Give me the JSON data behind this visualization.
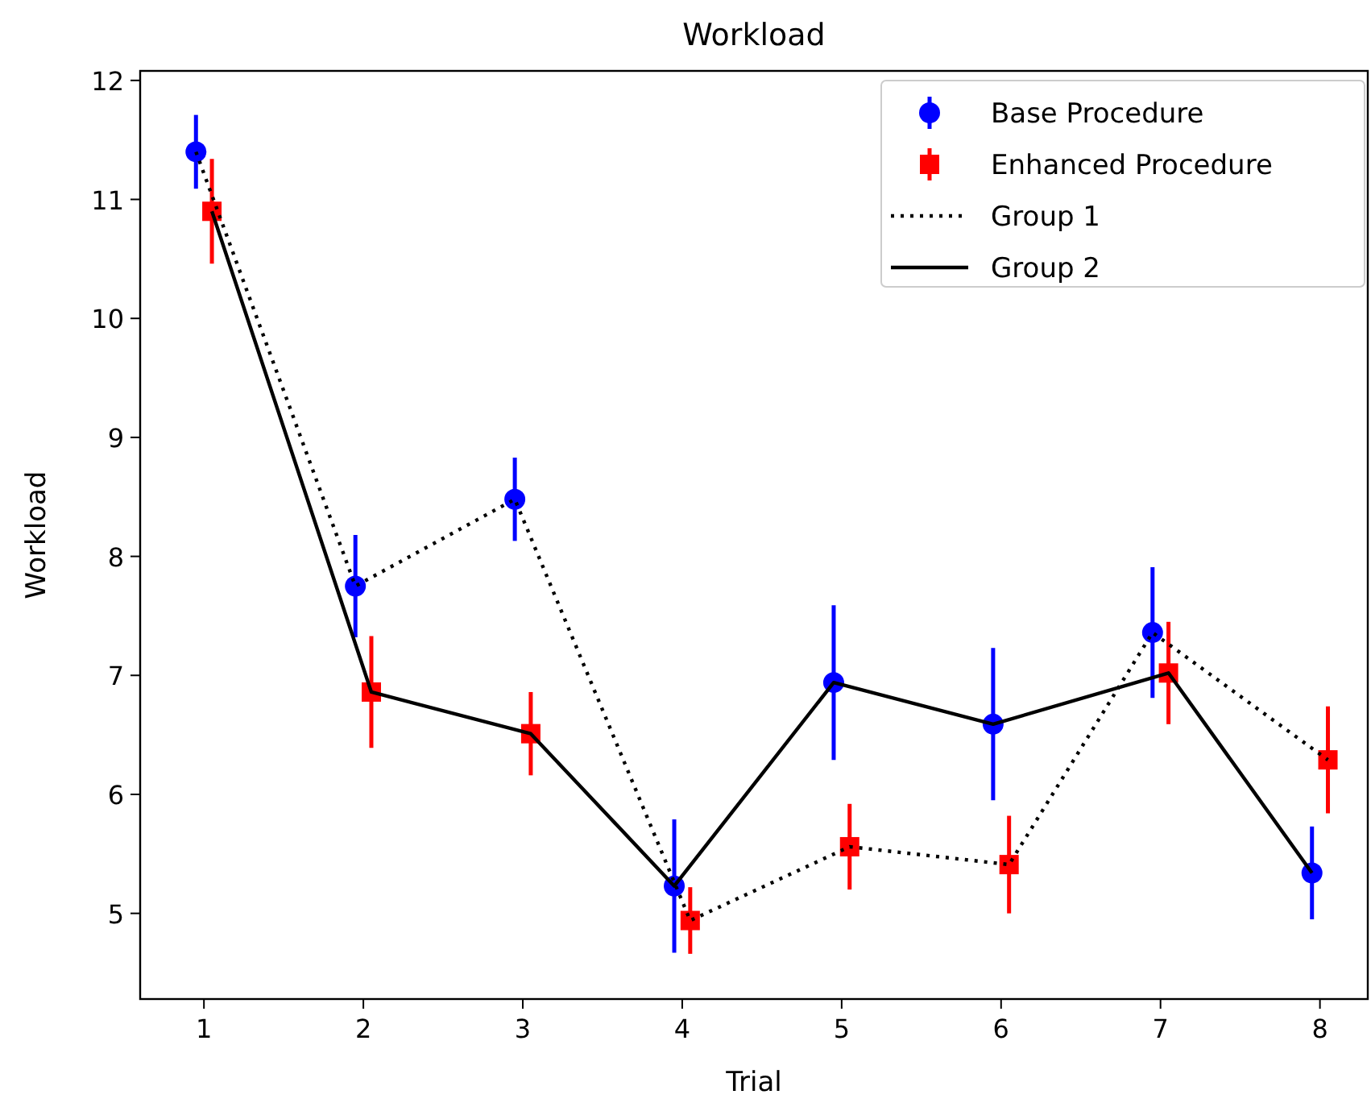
{
  "chart_data": {
    "type": "scatter",
    "title": "Workload",
    "xlabel": "Trial",
    "ylabel": "Workload",
    "xlim": [
      0.6,
      8.3
    ],
    "ylim": [
      4.28,
      12.08
    ],
    "xticks": [
      1,
      2,
      3,
      4,
      5,
      6,
      7,
      8
    ],
    "yticks": [
      5,
      6,
      7,
      8,
      9,
      10,
      11,
      12
    ],
    "grid": false,
    "legend": "top right",
    "series": [
      {
        "name": "Base Procedure",
        "type": "scatter",
        "marker": "circle",
        "color": "#0000ff",
        "x": [
          0.95,
          1.95,
          2.95,
          3.95,
          4.95,
          5.95,
          6.95,
          7.95
        ],
        "values": [
          11.4,
          7.75,
          8.48,
          5.23,
          6.94,
          6.59,
          7.36,
          5.34
        ],
        "errors": [
          0.31,
          0.43,
          0.35,
          0.56,
          0.65,
          0.64,
          0.55,
          0.39
        ]
      },
      {
        "name": "Enhanced Procedure",
        "type": "scatter",
        "marker": "square",
        "color": "#ff0000",
        "x": [
          1.05,
          2.05,
          3.05,
          4.05,
          5.05,
          6.05,
          7.05,
          8.05
        ],
        "values": [
          10.9,
          6.86,
          6.51,
          4.94,
          5.56,
          5.41,
          7.02,
          6.29
        ],
        "errors": [
          0.44,
          0.47,
          0.35,
          0.28,
          0.36,
          0.41,
          0.43,
          0.45
        ]
      },
      {
        "name": "Group 1",
        "type": "line",
        "line_style": "dotted",
        "marker": "none",
        "color": "#000000",
        "x": [
          0.95,
          1.95,
          2.95,
          4.05,
          5.05,
          6.05,
          6.95,
          8.05
        ],
        "values": [
          11.4,
          7.75,
          8.48,
          4.94,
          5.56,
          5.41,
          7.36,
          6.29
        ]
      },
      {
        "name": "Group 2",
        "type": "line",
        "line_style": "solid",
        "marker": "none",
        "color": "#000000",
        "x": [
          1.05,
          2.05,
          3.05,
          3.95,
          4.95,
          5.95,
          7.05,
          7.95
        ],
        "values": [
          10.9,
          6.86,
          6.51,
          5.23,
          6.94,
          6.59,
          7.02,
          5.34
        ]
      }
    ]
  }
}
